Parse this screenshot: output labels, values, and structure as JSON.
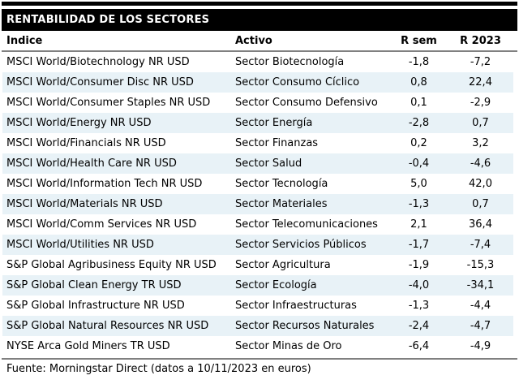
{
  "title_bar": {
    "title": "RENTABILIDAD DE LOS SECTORES"
  },
  "chart_data": {
    "type": "table",
    "title": "RENTABILIDAD DE LOS SECTORES",
    "columns": [
      "Índice",
      "Activo",
      "R sem",
      "R 2023"
    ],
    "rows": [
      [
        "MSCI World/Biotechnology NR USD",
        "Sector Biotecnología",
        "-1,8",
        "-7,2"
      ],
      [
        "MSCI World/Consumer Disc NR USD",
        "Sector Consumo Cíclico",
        "0,8",
        "22,4"
      ],
      [
        "MSCI World/Consumer Staples NR USD",
        "Sector Consumo Defensivo",
        "0,1",
        "-2,9"
      ],
      [
        "MSCI World/Energy NR USD",
        "Sector Energía",
        "-2,8",
        "0,7"
      ],
      [
        "MSCI World/Financials NR USD",
        "Sector Finanzas",
        "0,2",
        "3,2"
      ],
      [
        "MSCI World/Health Care NR USD",
        "Sector Salud",
        "-0,4",
        "-4,6"
      ],
      [
        "MSCI World/Information Tech NR USD",
        "Sector Tecnología",
        "5,0",
        "42,0"
      ],
      [
        "MSCI World/Materials NR USD",
        "Sector Materiales",
        "-1,3",
        "0,7"
      ],
      [
        "MSCI World/Comm Services NR USD",
        "Sector Telecomunicaciones",
        "2,1",
        "36,4"
      ],
      [
        "MSCI World/Utilities NR USD",
        "Sector Servicios Públicos",
        "-1,7",
        "-7,4"
      ],
      [
        "S&P Global Agribusiness Equity NR USD",
        "Sector Agricultura",
        "-1,9",
        "-15,3"
      ],
      [
        "S&P Global Clean Energy TR USD",
        "Sector Ecología",
        "-4,0",
        "-34,1"
      ],
      [
        "S&P Global Infrastructure NR USD",
        "Sector Infraestructuras",
        "-1,3",
        "-4,4"
      ],
      [
        "S&P Global Natural Resources NR USD",
        "Sector Recursos Naturales",
        "-2,4",
        "-4,7"
      ],
      [
        "NYSE Arca Gold Miners TR USD",
        "Sector Minas de Oro",
        "-6,4",
        "-4,9"
      ]
    ],
    "source_note": "Fuente: Morningstar Direct (datos a 10/11/2023 en euros)"
  },
  "footer": {
    "source": "Fuente: Morningstar Direct (datos a 10/11/2023 en euros)"
  },
  "colors": {
    "title_bg": "#000000",
    "title_text": "#ffffff",
    "row_alt": "#e8f2f7",
    "rule": "#808080"
  }
}
